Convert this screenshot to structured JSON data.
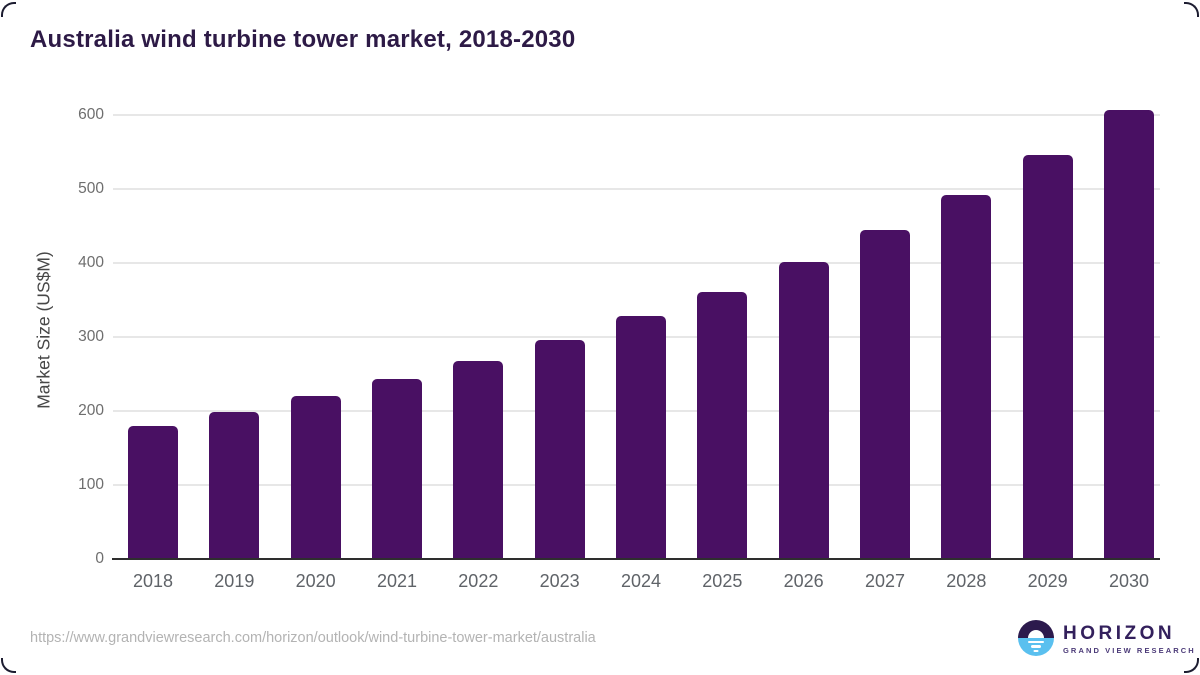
{
  "page": {
    "title": "Australia wind turbine tower market, 2018-2030"
  },
  "chart_data": {
    "type": "bar",
    "title": "Australia wind turbine tower market, 2018-2030",
    "categories": [
      "2018",
      "2019",
      "2020",
      "2021",
      "2022",
      "2023",
      "2024",
      "2025",
      "2026",
      "2027",
      "2028",
      "2029",
      "2030"
    ],
    "values": [
      180,
      199,
      220,
      243,
      268,
      296,
      328,
      361,
      401,
      444,
      492,
      546,
      606
    ],
    "xlabel": "",
    "ylabel": "Market Size (US$M)",
    "ylim": [
      0,
      620
    ],
    "yticks": [
      0,
      100,
      200,
      300,
      400,
      500,
      600
    ],
    "grid": true,
    "legend": false,
    "bar_color": "#491063"
  },
  "footer": {
    "source_url": "https://www.grandviewresearch.com/horizon/outlook/wind-turbine-tower-market/australia",
    "logo": {
      "name": "HORIZON",
      "subtitle": "GRAND VIEW RESEARCH"
    }
  },
  "colors": {
    "bar": "#491063",
    "title_text": "#2d1a46",
    "axis_line": "#2e2e2e",
    "gridline": "#e7e7e7",
    "tick_label": "#5f6368",
    "axis_title": "#474747",
    "url_text": "#b3b3b3",
    "logo_navy": "#2c1a4d",
    "logo_blue": "#5ac0ef"
  }
}
